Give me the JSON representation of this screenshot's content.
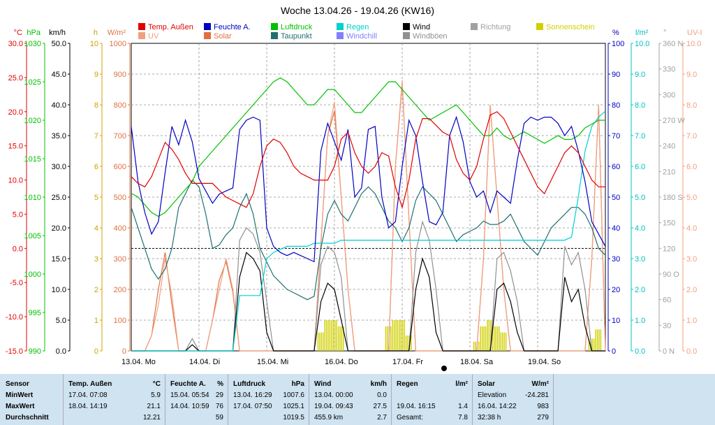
{
  "chart_data": {
    "type": "line",
    "title": "Woche 13.04.26 - 19.04.26 (KW16)",
    "x_labels": [
      "13.04.  Mo",
      "14.04.  Di",
      "15.04.  Mi",
      "16.04.  Do",
      "17.04.  Fr",
      "18.04.  Sa",
      "19.04.  So"
    ],
    "legend": [
      {
        "name": "Temp. Außen",
        "color": "#e00000"
      },
      {
        "name": "UV",
        "color": "#f0a080"
      },
      {
        "name": "Feuchte A.",
        "color": "#0000c0"
      },
      {
        "name": "Solar",
        "color": "#e07040"
      },
      {
        "name": "Luftdruck",
        "color": "#00c000"
      },
      {
        "name": "Taupunkt",
        "color": "#207070"
      },
      {
        "name": "Regen",
        "color": "#00d0d0"
      },
      {
        "name": "Windchill",
        "color": "#8080ff"
      },
      {
        "name": "Wind",
        "color": "#000000"
      },
      {
        "name": "Windböen",
        "color": "#909090"
      },
      {
        "name": "Richtung",
        "color": "#a0a0a0"
      },
      {
        "name": "Sonnenschein",
        "color": "#d0d000"
      }
    ],
    "axes_left": [
      {
        "unit": "°C",
        "color": "#e00000",
        "ticks": [
          "30.0",
          "25.0",
          "20.0",
          "15.0",
          "10.0",
          "5.0",
          "0.0",
          "-5.0",
          "-10.0",
          "-15.0"
        ]
      },
      {
        "unit": "hPa",
        "color": "#00c000",
        "ticks": [
          "1030",
          "1025",
          "1020",
          "1015",
          "1010",
          "1005",
          "1000",
          "995",
          "990"
        ]
      },
      {
        "unit": "km/h",
        "color": "#000000",
        "ticks": [
          "50.0",
          "45.0",
          "40.0",
          "35.0",
          "30.0",
          "25.0",
          "20.0",
          "15.0",
          "10.0",
          "5.0",
          "0.0"
        ]
      },
      {
        "unit": "h",
        "color": "#d0a000",
        "ticks": [
          "10",
          "9",
          "8",
          "7",
          "6",
          "5",
          "4",
          "3",
          "2",
          "1",
          "0"
        ]
      },
      {
        "unit": "W/m²",
        "color": "#e07040",
        "ticks": [
          "1000",
          "900",
          "800",
          "700",
          "600",
          "500",
          "400",
          "300",
          "200",
          "100",
          "0"
        ]
      }
    ],
    "axes_right": [
      {
        "unit": "%",
        "color": "#0000c0",
        "ticks": [
          "100",
          "90",
          "80",
          "70",
          "60",
          "50",
          "40",
          "30",
          "20",
          "10",
          "0"
        ]
      },
      {
        "unit": "l/m²",
        "color": "#00c0c0",
        "ticks": [
          "10.0",
          "9.0",
          "8.0",
          "7.0",
          "6.0",
          "5.0",
          "4.0",
          "3.0",
          "2.0",
          "1.0",
          "0.0"
        ]
      },
      {
        "unit": "°",
        "color": "#a0a0a0",
        "ticks": [
          "360 N",
          "330",
          "300",
          "270 W",
          "240",
          "210",
          "180 S",
          "150",
          "120",
          "90 O",
          "60",
          "30",
          "0 N"
        ]
      },
      {
        "unit": "UV-I",
        "color": "#f0a080",
        "ticks": [
          "10.0",
          "9.0",
          "8.0",
          "7.0",
          "6.0",
          "5.0",
          "4.0",
          "3.0",
          "2.0",
          "1.0",
          "0.0"
        ]
      }
    ],
    "grid": true,
    "series": [
      {
        "name": "Temp. Außen",
        "axis": "°C",
        "values": [
          10.5,
          9.5,
          9.0,
          10.5,
          13,
          15.5,
          14.5,
          13,
          11,
          9.5,
          9.5,
          9.5,
          9.5,
          8.5,
          7.5,
          7.0,
          6.5,
          6.0,
          8,
          12,
          15,
          16,
          15.5,
          14,
          12,
          11,
          10.5,
          10,
          10,
          10,
          12,
          16,
          17,
          14,
          12,
          11,
          12,
          14,
          13.5,
          9,
          6,
          10,
          16,
          19,
          19,
          18,
          17,
          16.5,
          13,
          11,
          10,
          12,
          16,
          19.5,
          20,
          19,
          17,
          15,
          13,
          11,
          9,
          8,
          10,
          12,
          14,
          15,
          14,
          12,
          10,
          9,
          9
        ]
      },
      {
        "name": "Luftdruck",
        "axis": "hPa",
        "values": [
          1010.5,
          1010,
          1009,
          1008,
          1007.5,
          1008,
          1009,
          1010,
          1011,
          1012,
          1014,
          1015,
          1016,
          1017,
          1018,
          1019,
          1020,
          1021,
          1022,
          1023,
          1024,
          1025,
          1025.5,
          1025,
          1024,
          1023,
          1022,
          1022,
          1023,
          1024,
          1024,
          1023,
          1022,
          1021,
          1021,
          1022,
          1023,
          1024,
          1025,
          1025,
          1024,
          1023,
          1022,
          1021,
          1020,
          1020.5,
          1021,
          1021.5,
          1022,
          1021,
          1020,
          1019,
          1018,
          1018,
          1019,
          1018,
          1017.5,
          1018,
          1018.5,
          1018,
          1017.5,
          1017,
          1017.5,
          1018,
          1017.5,
          1017.5,
          1018,
          1019,
          1019.5,
          1020,
          1020
        ]
      },
      {
        "name": "Feuchte A.",
        "axis": "%",
        "values": [
          73,
          55,
          45,
          38,
          42,
          58,
          73,
          67,
          75,
          68,
          56,
          52,
          48,
          51,
          52,
          53,
          72,
          75,
          76,
          75,
          40,
          34,
          32,
          31,
          32,
          31,
          30,
          29,
          65,
          74,
          68,
          62,
          72,
          50,
          53,
          72,
          73,
          50,
          40,
          42,
          60,
          75,
          70,
          55,
          42,
          41,
          45,
          70,
          76,
          68,
          55,
          50,
          52,
          45,
          52,
          50,
          48,
          62,
          74,
          76,
          75,
          76,
          76,
          74,
          70,
          73,
          65,
          55,
          42,
          38,
          34
        ]
      },
      {
        "name": "Taupunkt",
        "axis": "°C",
        "values": [
          6,
          3,
          0,
          -3,
          -4.5,
          -3,
          0,
          6,
          8,
          10,
          9,
          5,
          0,
          0.5,
          2,
          3,
          6,
          8,
          5,
          0,
          -2,
          -4,
          -5,
          -6,
          -6.5,
          -7,
          -7.5,
          -7,
          0,
          5,
          7,
          5,
          4,
          6,
          8,
          9,
          8,
          6,
          4,
          3,
          1,
          3,
          7,
          9,
          8,
          7,
          5,
          3,
          1,
          2,
          2.5,
          3,
          4,
          3.5,
          3.5,
          4,
          5,
          3,
          1,
          0,
          -1,
          1,
          3,
          4,
          5,
          6,
          6,
          5,
          3,
          0,
          -1
        ]
      },
      {
        "name": "Regen",
        "axis": "l/m²",
        "values": [
          0,
          0,
          0,
          0,
          0,
          0,
          0,
          0,
          0,
          0,
          0,
          0,
          0,
          0,
          0,
          0,
          1.8,
          1.8,
          1.8,
          1.8,
          3.0,
          3.2,
          3.3,
          3.4,
          3.4,
          3.4,
          3.4,
          3.5,
          3.5,
          3.5,
          3.5,
          3.6,
          3.6,
          3.6,
          3.6,
          3.6,
          3.6,
          3.6,
          3.6,
          3.6,
          3.6,
          3.6,
          3.6,
          3.6,
          3.6,
          3.6,
          3.6,
          3.6,
          3.6,
          3.6,
          3.6,
          3.6,
          3.6,
          3.6,
          3.6,
          3.6,
          3.6,
          3.6,
          3.6,
          3.6,
          3.6,
          3.6,
          3.6,
          3.6,
          3.6,
          3.7,
          5,
          6.5,
          7.3,
          7.6,
          7.8
        ]
      },
      {
        "name": "Wind",
        "axis": "km/h",
        "values": [
          0,
          0,
          0,
          0,
          0,
          0,
          0,
          0,
          0,
          1,
          0,
          0,
          0,
          0,
          0,
          0,
          12,
          16,
          15,
          13,
          3,
          0,
          0,
          0,
          0,
          0,
          0,
          0,
          8,
          11,
          10,
          5,
          0,
          0,
          0,
          0,
          0,
          0,
          0,
          0,
          0,
          0,
          10,
          15,
          12,
          3,
          0,
          0,
          0,
          0,
          0,
          0,
          0,
          0,
          10,
          11,
          8,
          3,
          0,
          0,
          0,
          0,
          0,
          0,
          12,
          8,
          10,
          4,
          0,
          0,
          0
        ]
      },
      {
        "name": "Windböen",
        "axis": "km/h",
        "values": [
          0,
          0,
          0,
          0,
          0,
          0,
          0,
          0,
          0,
          2,
          0,
          0,
          0,
          0,
          0,
          0,
          18,
          20,
          19,
          16,
          8,
          0,
          0,
          0,
          0,
          0,
          0,
          0,
          14,
          17,
          16,
          12,
          0,
          0,
          0,
          0,
          0,
          0,
          0,
          0,
          0,
          0,
          16,
          21,
          18,
          10,
          0,
          0,
          0,
          0,
          0,
          0,
          0,
          0,
          15,
          16,
          13,
          8,
          0,
          0,
          0,
          0,
          0,
          0,
          17,
          14,
          16,
          10,
          0,
          0,
          0
        ]
      },
      {
        "name": "Solar",
        "axis": "W/m²",
        "values": [
          0,
          0,
          0,
          50,
          200,
          320,
          150,
          0,
          0,
          0,
          0,
          0,
          100,
          230,
          290,
          190,
          0,
          0,
          0,
          0,
          0,
          0,
          0,
          0,
          0,
          0,
          0,
          0,
          350,
          700,
          780,
          500,
          200,
          0,
          0,
          0,
          0,
          0,
          0,
          600,
          870,
          430,
          0,
          0,
          0,
          0,
          0,
          0,
          0,
          0,
          0,
          0,
          300,
          800,
          500,
          200,
          0,
          0,
          0,
          0,
          0,
          0,
          0,
          0,
          0,
          0,
          0,
          0,
          300,
          800,
          0
        ]
      },
      {
        "name": "UV",
        "axis": "UV-I",
        "values": [
          0,
          0,
          0,
          0.5,
          1.5,
          3,
          1.8,
          0,
          0,
          0,
          0,
          0,
          1,
          2,
          3,
          2,
          0,
          0,
          0,
          0,
          0,
          0,
          0,
          0,
          0,
          0,
          0,
          0,
          3.5,
          7,
          8.1,
          5,
          2,
          0,
          0,
          0,
          0,
          0,
          0,
          6,
          8.8,
          4.3,
          0,
          0,
          0,
          0,
          0,
          0,
          0,
          0,
          0,
          0,
          3,
          8,
          5,
          2,
          0,
          0,
          0,
          0,
          0,
          0,
          0,
          0,
          0,
          0,
          0,
          0,
          3,
          8,
          0
        ]
      },
      {
        "name": "Sonnenschein",
        "axis": "h",
        "values": [
          0,
          0,
          0,
          0,
          0,
          0,
          0,
          0,
          0,
          0,
          0,
          0,
          0,
          0,
          0,
          0,
          0,
          0,
          0,
          0,
          0,
          0,
          0,
          0,
          0,
          0,
          0,
          0,
          0.6,
          1.0,
          1.0,
          0.8,
          0,
          0,
          0,
          0,
          0,
          0,
          0.8,
          1.0,
          1.0,
          0.5,
          0,
          0,
          0,
          0,
          0,
          0,
          0,
          0,
          0,
          0.3,
          0.8,
          1.0,
          0.8,
          0.6,
          0,
          0,
          0,
          0,
          0,
          0,
          0,
          0,
          0,
          0,
          0,
          0,
          0.4,
          0.7,
          0
        ]
      }
    ],
    "zero_line_celsius": 0.0
  },
  "stats": {
    "sensor": {
      "title": "Sensor",
      "rows": [
        "MinWert",
        "MaxWert",
        "Durchschnitt"
      ]
    },
    "temp": {
      "title": "Temp. Außen",
      "unit": "°C",
      "rows": [
        [
          "17.04.  07:08",
          "5.9"
        ],
        [
          "18.04.  14:19",
          "21.1"
        ],
        [
          "",
          "12.21"
        ]
      ]
    },
    "feuchte": {
      "title": "Feuchte A.",
      "unit": "%",
      "rows": [
        [
          "15.04.  05:54",
          "29"
        ],
        [
          "14.04.  10:59",
          "76"
        ],
        [
          "",
          "59"
        ]
      ]
    },
    "luftdruck": {
      "title": "Luftdruck",
      "unit": "hPa",
      "rows": [
        [
          "13.04.  16:29",
          "1007.6"
        ],
        [
          "17.04.  07:50",
          "1025.1"
        ],
        [
          "",
          "1019.5"
        ]
      ]
    },
    "wind": {
      "title": "Wind",
      "unit": "km/h",
      "rows": [
        [
          "13.04.  00:00",
          "0.0"
        ],
        [
          "19.04.  09:43",
          "27.5"
        ],
        [
          "455.9 km",
          "2.7"
        ]
      ]
    },
    "regen": {
      "title": "Regen",
      "unit": "l/m²",
      "rows": [
        [
          "",
          ""
        ],
        [
          "19.04.  16:15",
          "1.4"
        ],
        [
          "Gesamt:",
          "7.8"
        ]
      ]
    },
    "solar": {
      "title": "Solar",
      "unit": "W/m²",
      "rows": [
        [
          "Elevation",
          "-24.281"
        ],
        [
          "16.04.  14:22",
          "983"
        ],
        [
          "32:38 h",
          "279"
        ]
      ]
    }
  }
}
